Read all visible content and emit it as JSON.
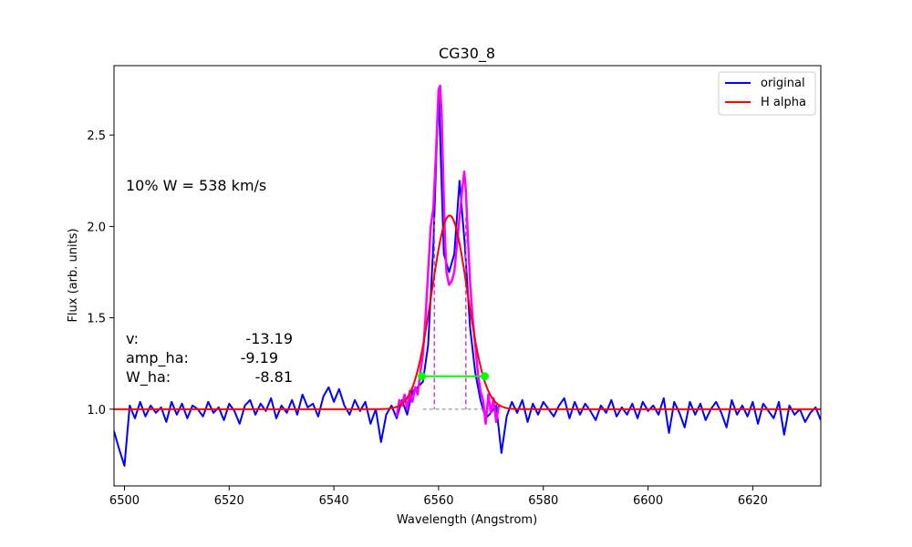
{
  "chart_data": {
    "type": "line",
    "title": "CG30_8",
    "xlabel": "Wavelength (Angstrom)",
    "ylabel": "Flux (arb. units)",
    "xlim": [
      6498,
      6633
    ],
    "ylim": [
      0.58,
      2.88
    ],
    "xticks": [
      6500,
      6520,
      6540,
      6560,
      6580,
      6600,
      6620
    ],
    "yticks": [
      1.0,
      1.5,
      2.0,
      2.5
    ],
    "ytick_labels": [
      "1.0",
      "1.5",
      "2.0",
      "2.5"
    ],
    "grid": false,
    "legend_position": "top-right",
    "legend": [
      {
        "label": "original",
        "color": "#0000ff"
      },
      {
        "label": "H alpha",
        "color": "#ff0000"
      }
    ],
    "series": [
      {
        "name": "original",
        "color": "#0000ff",
        "x": [
          6498,
          6499,
          6500,
          6501,
          6502,
          6503,
          6504,
          6505,
          6506,
          6507,
          6508,
          6509,
          6510,
          6511,
          6512,
          6513,
          6514,
          6515,
          6516,
          6517,
          6518,
          6519,
          6520,
          6521,
          6522,
          6523,
          6524,
          6525,
          6526,
          6527,
          6528,
          6529,
          6530,
          6531,
          6532,
          6533,
          6534,
          6535,
          6536,
          6537,
          6538,
          6539,
          6540,
          6541,
          6542,
          6543,
          6544,
          6545,
          6546,
          6547,
          6548,
          6549,
          6550,
          6551,
          6552,
          6553,
          6554,
          6555,
          6556,
          6557,
          6558,
          6559,
          6560,
          6561,
          6562,
          6563,
          6564,
          6565,
          6566,
          6567,
          6568,
          6569,
          6570,
          6571,
          6572,
          6573,
          6574,
          6575,
          6576,
          6577,
          6578,
          6579,
          6580,
          6581,
          6582,
          6583,
          6584,
          6585,
          6586,
          6587,
          6588,
          6589,
          6590,
          6591,
          6592,
          6593,
          6594,
          6595,
          6596,
          6597,
          6598,
          6599,
          6600,
          6601,
          6602,
          6603,
          6604,
          6605,
          6606,
          6607,
          6608,
          6609,
          6610,
          6611,
          6612,
          6613,
          6614,
          6615,
          6616,
          6617,
          6618,
          6619,
          6620,
          6621,
          6622,
          6623,
          6624,
          6625,
          6626,
          6627,
          6628,
          6629,
          6630,
          6631,
          6632,
          6633
        ],
        "y": [
          0.88,
          0.78,
          0.69,
          1.02,
          0.95,
          1.04,
          0.96,
          1.02,
          0.98,
          1.01,
          0.93,
          1.04,
          0.97,
          1.03,
          0.95,
          1.02,
          1.0,
          0.96,
          1.04,
          0.98,
          1.01,
          0.94,
          1.03,
          0.99,
          0.92,
          1.02,
          1.05,
          0.97,
          1.03,
          0.99,
          1.06,
          0.95,
          1.02,
          0.98,
          1.05,
          0.97,
          1.08,
          1.01,
          1.03,
          0.96,
          1.07,
          1.12,
          1.04,
          1.11,
          1.02,
          0.97,
          1.05,
          0.99,
          1.04,
          0.92,
          1.0,
          0.82,
          0.97,
          1.02,
          0.95,
          1.05,
          0.97,
          1.1,
          1.12,
          1.15,
          1.35,
          1.9,
          2.75,
          1.85,
          1.75,
          1.85,
          2.25,
          1.9,
          1.45,
          1.2,
          1.05,
          0.95,
          0.98,
          1.02,
          0.76,
          0.96,
          1.04,
          0.98,
          1.05,
          0.93,
          1.03,
          0.97,
          1.04,
          1.0,
          0.96,
          1.02,
          1.06,
          0.95,
          1.04,
          0.97,
          1.03,
          0.99,
          0.94,
          1.02,
          0.98,
          1.05,
          0.96,
          1.01,
          0.97,
          1.03,
          0.95,
          1.04,
          0.99,
          1.02,
          0.97,
          1.06,
          0.87,
          1.04,
          0.98,
          0.9,
          1.04,
          0.97,
          1.03,
          0.94,
          1.0,
          1.04,
          0.98,
          0.9,
          1.05,
          0.97,
          1.02,
          0.96,
          1.04,
          0.92,
          1.03,
          0.99,
          0.95,
          1.04,
          0.86,
          1.02,
          0.97,
          1.0,
          0.93,
          0.98,
          1.01,
          0.94
        ]
      },
      {
        "name": "H alpha",
        "color": "#ff0000",
        "fit": {
          "baseline": 1.0,
          "amplitude": 1.06,
          "center": 6562.1,
          "sigma": 3.4
        },
        "x_range": [
          6498,
          6633
        ]
      },
      {
        "color": "#ff00ff",
        "x": [
          6552.0,
          6552.5,
          6553.0,
          6553.5,
          6554.0,
          6554.5,
          6555.0,
          6555.5,
          6556.0,
          6556.5,
          6557.0,
          6557.5,
          6558.0,
          6558.5,
          6559.0,
          6559.5,
          6560.0,
          6560.3,
          6560.6,
          6560.9,
          6561.2,
          6561.5,
          6562.0,
          6562.5,
          6563.0,
          6563.5,
          6564.0,
          6564.5,
          6564.9,
          6565.2,
          6565.5,
          6566.0,
          6566.5,
          6567.0,
          6567.5,
          6568.0,
          6568.5,
          6569.0,
          6569.5,
          6570.0,
          6570.5,
          6571.0,
          6571.5
        ],
        "y": [
          0.96,
          1.05,
          1.02,
          1.08,
          1.0,
          1.1,
          1.04,
          1.12,
          1.08,
          1.2,
          1.3,
          1.5,
          1.75,
          2.0,
          2.1,
          2.4,
          2.75,
          2.77,
          2.6,
          2.25,
          1.95,
          1.75,
          1.68,
          1.7,
          1.75,
          1.9,
          2.05,
          2.2,
          2.3,
          2.2,
          2.0,
          1.7,
          1.5,
          1.35,
          1.2,
          1.1,
          1.05,
          0.92,
          1.08,
          0.98,
          1.06,
          0.93,
          1.02
        ]
      }
    ],
    "annotations": {
      "width_label": "10% W = 538 km/s",
      "params": [
        {
          "name": "v:",
          "value": "-13.19"
        },
        {
          "name": "amp_ha:",
          "value": "-9.19"
        },
        {
          "name": "W_ha:",
          "value": "-8.81"
        }
      ],
      "width_marker": {
        "x1": 6556.8,
        "x2": 6568.8,
        "y": 1.18,
        "color": "#00ff00"
      },
      "dashed_verticals": [
        {
          "x": 6559.2,
          "y_top": 2.05
        },
        {
          "x": 6565.2,
          "y_top": 2.05
        }
      ],
      "baseline_segment": {
        "x1": 6557,
        "x2": 6570,
        "y": 1.0
      }
    },
    "colors": {
      "original": "#0000ff",
      "fit": "#ff0000",
      "line_region": "#ff00ff",
      "width_marker": "#00ff00",
      "dashed": "#cc44cc",
      "baseline": "#808080"
    }
  }
}
